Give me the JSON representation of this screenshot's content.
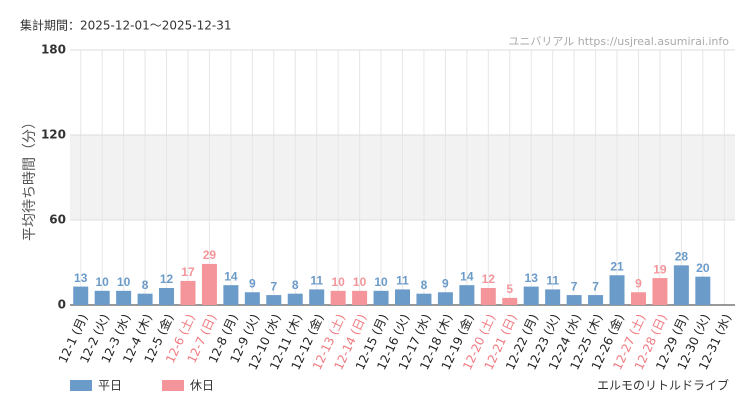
{
  "chart_data": {
    "type": "bar",
    "header": "集計期間：2025-12-01～2025-12-31",
    "source": "ユニバリアル https://usjreal.asumirai.info",
    "attraction": "エルモのリトルドライブ",
    "ylabel": "平均待ち時間（分）",
    "categories": [
      "12-1 (月)",
      "12-2 (火)",
      "12-3 (水)",
      "12-4 (木)",
      "12-5 (金)",
      "12-6 (土)",
      "12-7 (日)",
      "12-8 (月)",
      "12-9 (火)",
      "12-10 (水)",
      "12-11 (木)",
      "12-12 (金)",
      "12-13 (土)",
      "12-14 (日)",
      "12-15 (月)",
      "12-16 (火)",
      "12-17 (水)",
      "12-18 (木)",
      "12-19 (金)",
      "12-20 (土)",
      "12-21 (日)",
      "12-22 (月)",
      "12-23 (火)",
      "12-24 (水)",
      "12-25 (木)",
      "12-26 (金)",
      "12-27 (土)",
      "12-28 (日)",
      "12-29 (月)",
      "12-30 (火)",
      "12-31 (水)"
    ],
    "series": [
      {
        "name": "平日",
        "color": "#6b9bc9",
        "values": [
          13,
          10,
          10,
          8,
          12,
          null,
          null,
          14,
          9,
          7,
          8,
          11,
          null,
          null,
          10,
          11,
          8,
          9,
          14,
          null,
          null,
          13,
          11,
          7,
          7,
          21,
          null,
          null,
          28,
          20,
          null
        ]
      },
      {
        "name": "休日",
        "color": "#f4959b",
        "values": [
          null,
          null,
          null,
          null,
          null,
          17,
          29,
          null,
          null,
          null,
          null,
          null,
          10,
          10,
          null,
          null,
          null,
          null,
          null,
          12,
          5,
          null,
          null,
          null,
          null,
          null,
          9,
          19,
          null,
          null,
          null
        ]
      }
    ],
    "ylim": [
      0,
      180
    ],
    "yticks": [
      0,
      60,
      120,
      180
    ],
    "grid": true
  }
}
